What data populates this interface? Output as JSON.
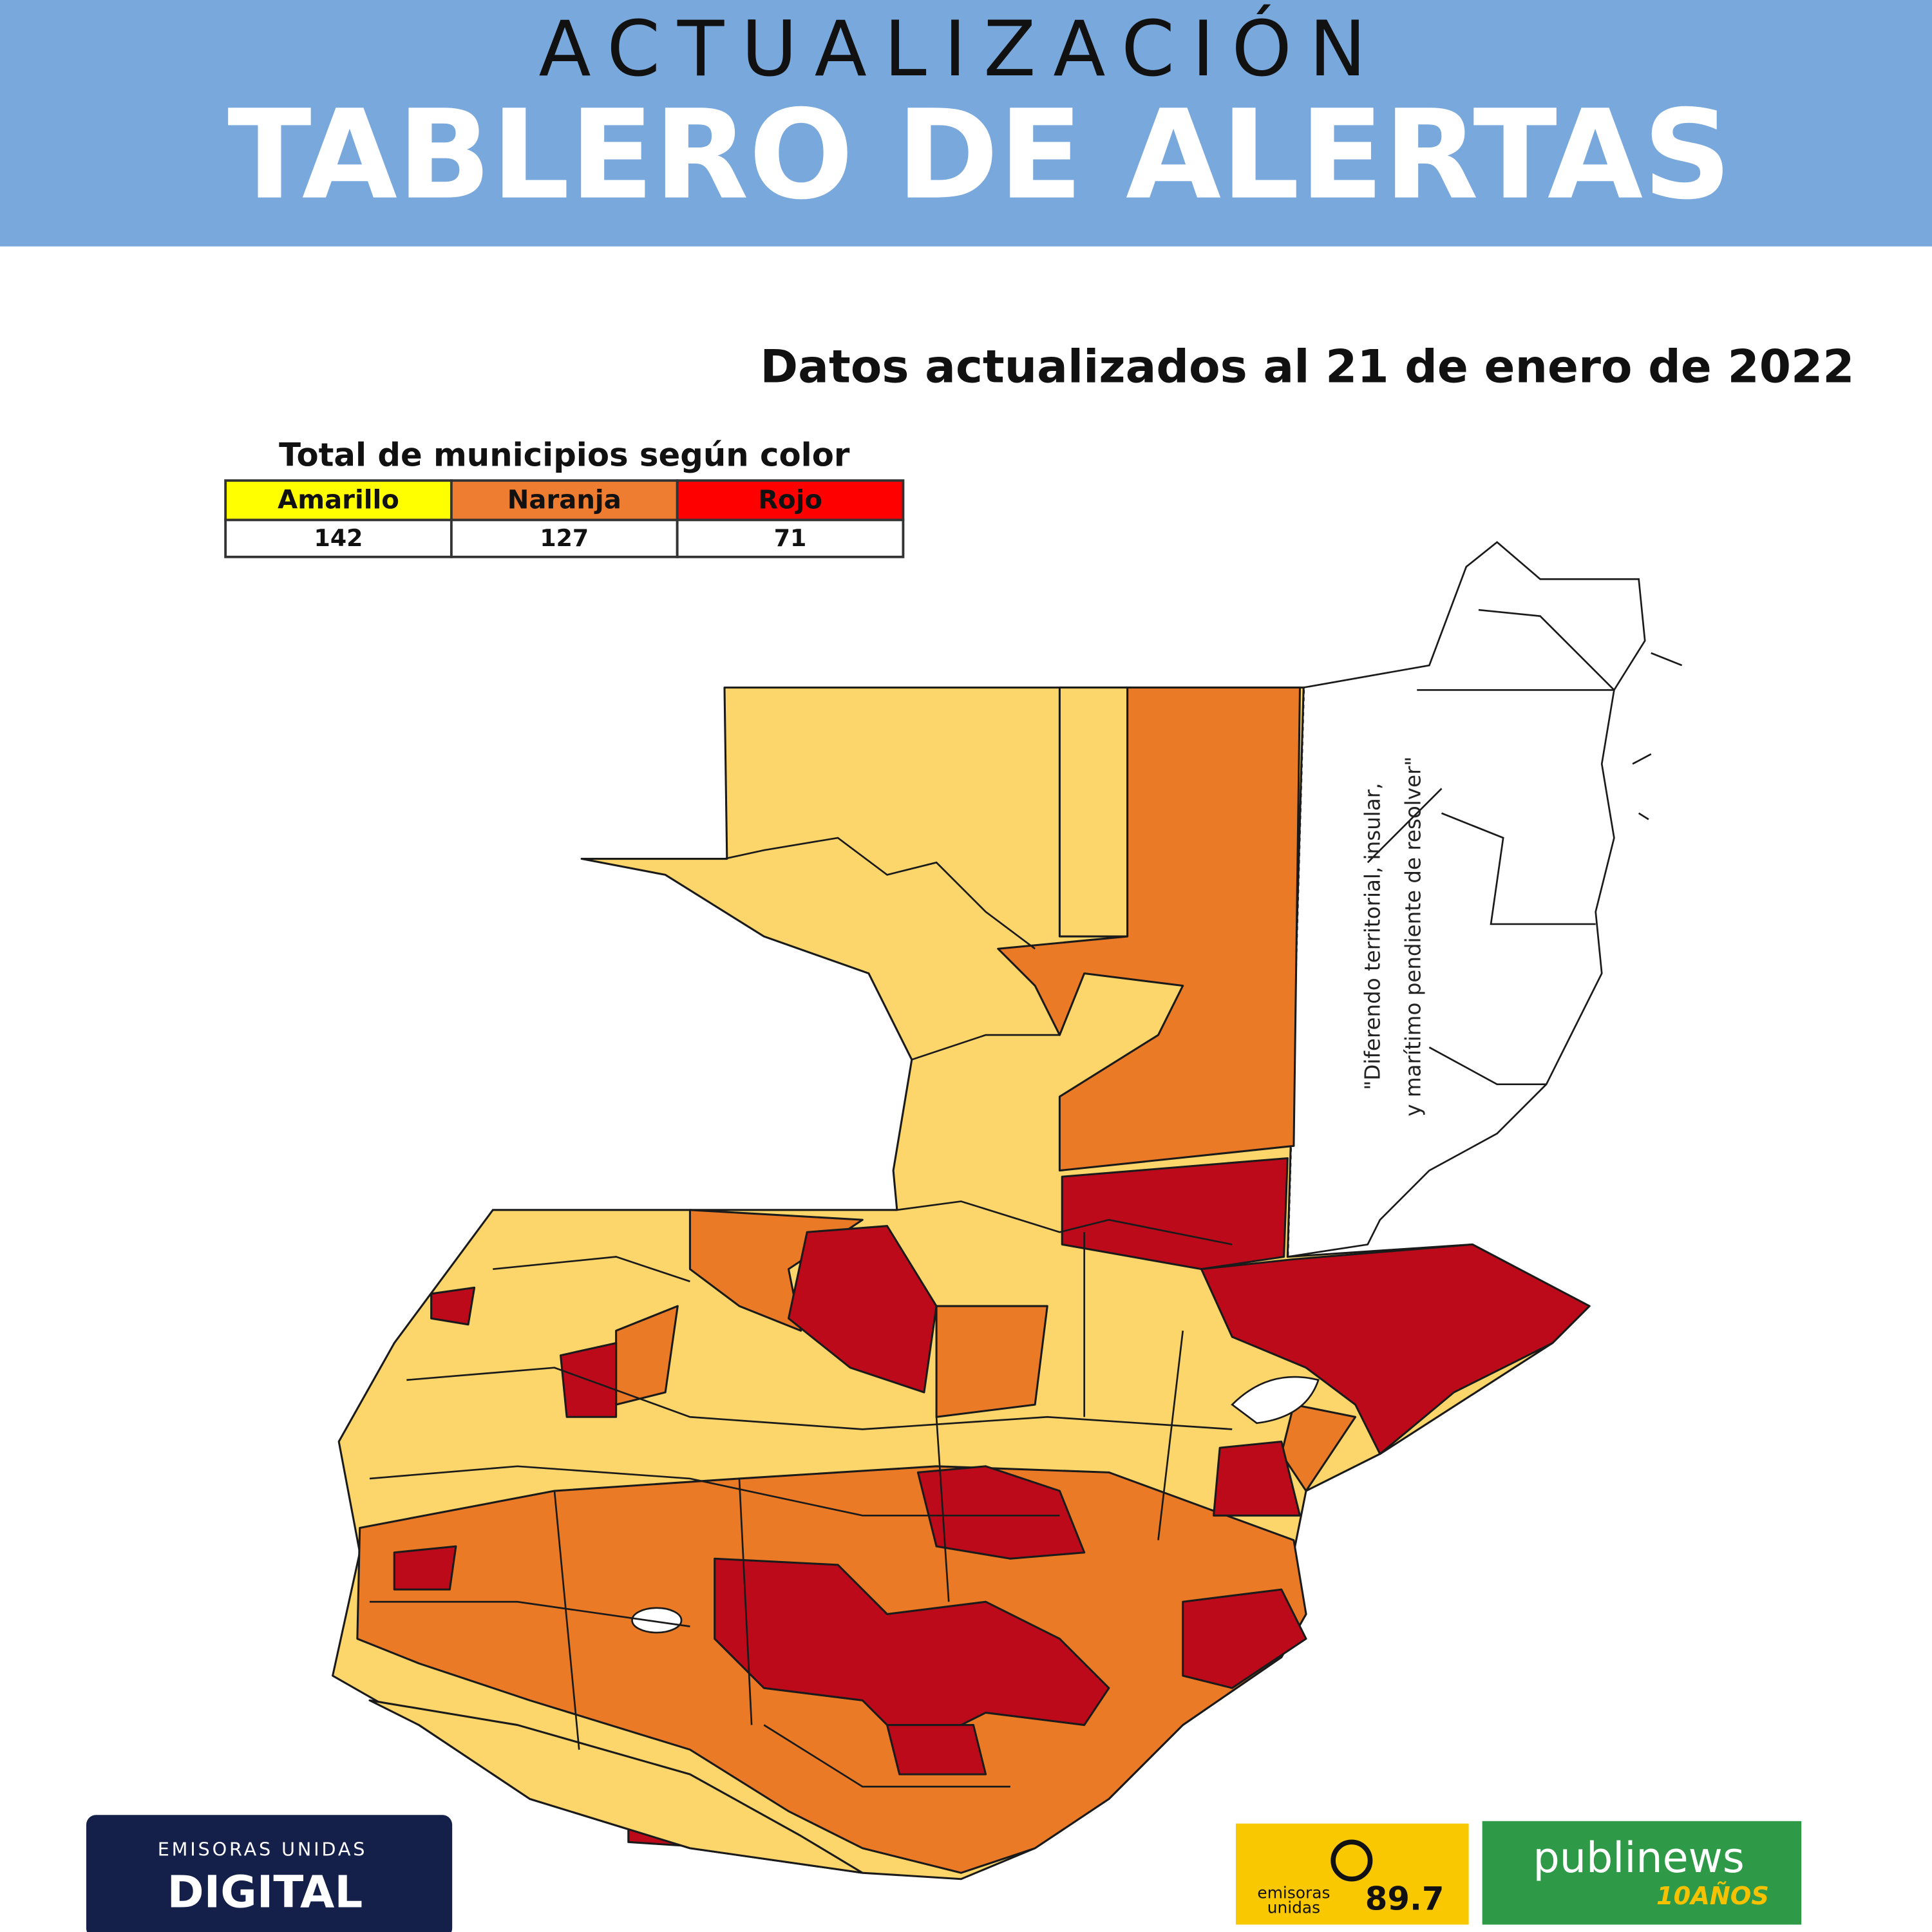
{
  "header": {
    "kicker": "ACTUALIZACIÓN",
    "title": "TABLERO DE ALERTAS"
  },
  "subtitle": "Datos actualizados al 21 de enero de 2022",
  "table": {
    "title": "Total de municipios según color",
    "columns": [
      {
        "label": "Amarillo",
        "color": "#ffff00"
      },
      {
        "label": "Naranja",
        "color": "#ee7d31"
      },
      {
        "label": "Rojo",
        "color": "#ff0000"
      }
    ],
    "values": [
      "142",
      "127",
      "71"
    ]
  },
  "map": {
    "annotation": [
      "\"Diferendo territorial, insular,",
      "y marítimo pendiente de resolver\""
    ]
  },
  "logos": {
    "digital": {
      "top": "EMISORAS UNIDAS",
      "name": "DIGITAL"
    },
    "radio": {
      "line1": "emisoras",
      "line2": "unidas",
      "frequency": "89.7"
    },
    "publinews": {
      "name": "publinews",
      "anniversary": "10AÑOS"
    }
  }
}
